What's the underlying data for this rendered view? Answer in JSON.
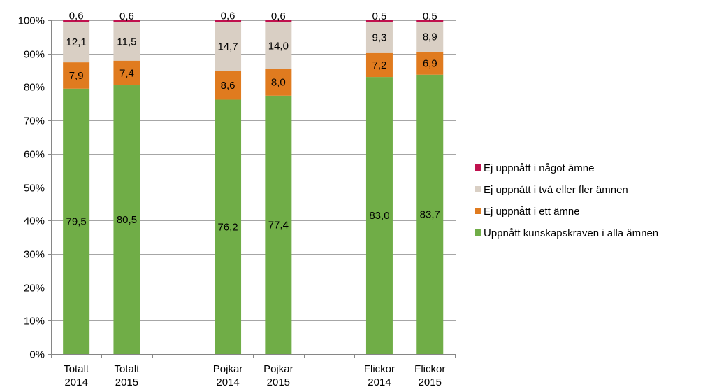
{
  "chart_data": {
    "type": "bar",
    "stacked": true,
    "ylim": [
      0,
      100
    ],
    "yticks": [
      "0%",
      "10%",
      "20%",
      "30%",
      "40%",
      "50%",
      "60%",
      "70%",
      "80%",
      "90%",
      "100%"
    ],
    "grid": true,
    "legend_position": "right",
    "categories": [
      {
        "line1": "Totalt",
        "line2": "2014",
        "slot": 0
      },
      {
        "line1": "Totalt",
        "line2": "2015",
        "slot": 1
      },
      {
        "line1": "Pojkar",
        "line2": "2014",
        "slot": 3
      },
      {
        "line1": "Pojkar",
        "line2": "2015",
        "slot": 4
      },
      {
        "line1": "Flickor",
        "line2": "2014",
        "slot": 6
      },
      {
        "line1": "Flickor",
        "line2": "2015",
        "slot": 7
      }
    ],
    "series": [
      {
        "name": "Uppnått kunskapskraven i alla ämnen",
        "color": "#70ad47",
        "values": [
          79.5,
          80.5,
          76.2,
          77.4,
          83.0,
          83.7
        ],
        "labels": [
          "79,5",
          "80,5",
          "76,2",
          "77,4",
          "83,0",
          "83,7"
        ]
      },
      {
        "name": "Ej uppnått i ett ämne",
        "color": "#e07b1f",
        "values": [
          7.9,
          7.4,
          8.6,
          8.0,
          7.2,
          6.9
        ],
        "labels": [
          "7,9",
          "7,4",
          "8,6",
          "8,0",
          "7,2",
          "6,9"
        ]
      },
      {
        "name": "Ej uppnått i två eller fler ämnen",
        "color": "#d9cfc4",
        "values": [
          12.1,
          11.5,
          14.7,
          14.0,
          9.3,
          8.9
        ],
        "labels": [
          "12,1",
          "11,5",
          "14,7",
          "14,0",
          "9,3",
          "8,9"
        ]
      },
      {
        "name": "Ej uppnått i något ämne",
        "color": "#c0114e",
        "values": [
          0.6,
          0.6,
          0.6,
          0.6,
          0.5,
          0.5
        ],
        "labels": [
          "0,6",
          "0,6",
          "0,6",
          "0,6",
          "0,5",
          "0,5"
        ]
      }
    ],
    "legend_order": [
      3,
      2,
      1,
      0
    ]
  }
}
